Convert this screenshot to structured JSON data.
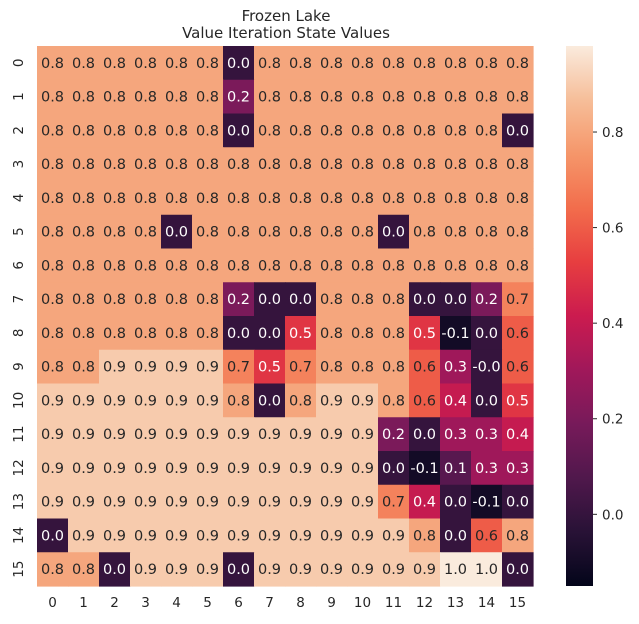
{
  "chart_data": {
    "type": "heatmap",
    "title": "Frozen Lake",
    "subtitle": "Value Iteration State Values",
    "x_tick_labels": [
      "0",
      "1",
      "2",
      "3",
      "4",
      "5",
      "6",
      "7",
      "8",
      "9",
      "10",
      "11",
      "12",
      "13",
      "14",
      "15"
    ],
    "y_tick_labels": [
      "0",
      "1",
      "2",
      "3",
      "4",
      "5",
      "6",
      "7",
      "8",
      "9",
      "10",
      "11",
      "12",
      "13",
      "14",
      "15"
    ],
    "values": [
      [
        0.8,
        0.8,
        0.8,
        0.8,
        0.8,
        0.8,
        0.0,
        0.8,
        0.8,
        0.8,
        0.8,
        0.8,
        0.8,
        0.8,
        0.8,
        0.8
      ],
      [
        0.8,
        0.8,
        0.8,
        0.8,
        0.8,
        0.8,
        0.2,
        0.8,
        0.8,
        0.8,
        0.8,
        0.8,
        0.8,
        0.8,
        0.8,
        0.8
      ],
      [
        0.8,
        0.8,
        0.8,
        0.8,
        0.8,
        0.8,
        0.0,
        0.8,
        0.8,
        0.8,
        0.8,
        0.8,
        0.8,
        0.8,
        0.8,
        0.0
      ],
      [
        0.8,
        0.8,
        0.8,
        0.8,
        0.8,
        0.8,
        0.8,
        0.8,
        0.8,
        0.8,
        0.8,
        0.8,
        0.8,
        0.8,
        0.8,
        0.8
      ],
      [
        0.8,
        0.8,
        0.8,
        0.8,
        0.8,
        0.8,
        0.8,
        0.8,
        0.8,
        0.8,
        0.8,
        0.8,
        0.8,
        0.8,
        0.8,
        0.8
      ],
      [
        0.8,
        0.8,
        0.8,
        0.8,
        0.0,
        0.8,
        0.8,
        0.8,
        0.8,
        0.8,
        0.8,
        0.0,
        0.8,
        0.8,
        0.8,
        0.8
      ],
      [
        0.8,
        0.8,
        0.8,
        0.8,
        0.8,
        0.8,
        0.8,
        0.8,
        0.8,
        0.8,
        0.8,
        0.8,
        0.8,
        0.8,
        0.8,
        0.8
      ],
      [
        0.8,
        0.8,
        0.8,
        0.8,
        0.8,
        0.8,
        0.2,
        0.0,
        0.0,
        0.8,
        0.8,
        0.8,
        0.0,
        0.0,
        0.2,
        0.7
      ],
      [
        0.8,
        0.8,
        0.8,
        0.8,
        0.8,
        0.8,
        0.0,
        0.0,
        0.5,
        0.8,
        0.8,
        0.8,
        0.5,
        -0.1,
        0.0,
        0.6
      ],
      [
        0.8,
        0.8,
        0.9,
        0.9,
        0.9,
        0.9,
        0.7,
        0.5,
        0.7,
        0.8,
        0.8,
        0.8,
        0.6,
        0.3,
        -0.0,
        0.6
      ],
      [
        0.9,
        0.9,
        0.9,
        0.9,
        0.9,
        0.9,
        0.8,
        0.0,
        0.8,
        0.9,
        0.9,
        0.8,
        0.6,
        0.4,
        0.0,
        0.5
      ],
      [
        0.9,
        0.9,
        0.9,
        0.9,
        0.9,
        0.9,
        0.9,
        0.9,
        0.9,
        0.9,
        0.9,
        0.2,
        0.0,
        0.3,
        0.3,
        0.4
      ],
      [
        0.9,
        0.9,
        0.9,
        0.9,
        0.9,
        0.9,
        0.9,
        0.9,
        0.9,
        0.9,
        0.9,
        0.0,
        -0.1,
        0.1,
        0.3,
        0.3
      ],
      [
        0.9,
        0.9,
        0.9,
        0.9,
        0.9,
        0.9,
        0.9,
        0.9,
        0.9,
        0.9,
        0.9,
        0.7,
        0.4,
        0.0,
        -0.1,
        0.0
      ],
      [
        0.0,
        0.9,
        0.9,
        0.9,
        0.9,
        0.9,
        0.9,
        0.9,
        0.9,
        0.9,
        0.9,
        0.9,
        0.8,
        0.0,
        0.6,
        0.8
      ],
      [
        0.8,
        0.8,
        0.0,
        0.9,
        0.9,
        0.9,
        0.0,
        0.9,
        0.9,
        0.9,
        0.9,
        0.9,
        0.9,
        1.0,
        1.0,
        0.0
      ]
    ],
    "cell_labels": [
      [
        "0.8",
        "0.8",
        "0.8",
        "0.8",
        "0.8",
        "0.8",
        "0.0",
        "0.8",
        "0.8",
        "0.8",
        "0.8",
        "0.8",
        "0.8",
        "0.8",
        "0.8",
        "0.8"
      ],
      [
        "0.8",
        "0.8",
        "0.8",
        "0.8",
        "0.8",
        "0.8",
        "0.2",
        "0.8",
        "0.8",
        "0.8",
        "0.8",
        "0.8",
        "0.8",
        "0.8",
        "0.8",
        "0.8"
      ],
      [
        "0.8",
        "0.8",
        "0.8",
        "0.8",
        "0.8",
        "0.8",
        "0.0",
        "0.8",
        "0.8",
        "0.8",
        "0.8",
        "0.8",
        "0.8",
        "0.8",
        "0.8",
        "0.0"
      ],
      [
        "0.8",
        "0.8",
        "0.8",
        "0.8",
        "0.8",
        "0.8",
        "0.8",
        "0.8",
        "0.8",
        "0.8",
        "0.8",
        "0.8",
        "0.8",
        "0.8",
        "0.8",
        "0.8"
      ],
      [
        "0.8",
        "0.8",
        "0.8",
        "0.8",
        "0.8",
        "0.8",
        "0.8",
        "0.8",
        "0.8",
        "0.8",
        "0.8",
        "0.8",
        "0.8",
        "0.8",
        "0.8",
        "0.8"
      ],
      [
        "0.8",
        "0.8",
        "0.8",
        "0.8",
        "0.0",
        "0.8",
        "0.8",
        "0.8",
        "0.8",
        "0.8",
        "0.8",
        "0.0",
        "0.8",
        "0.8",
        "0.8",
        "0.8"
      ],
      [
        "0.8",
        "0.8",
        "0.8",
        "0.8",
        "0.8",
        "0.8",
        "0.8",
        "0.8",
        "0.8",
        "0.8",
        "0.8",
        "0.8",
        "0.8",
        "0.8",
        "0.8",
        "0.8"
      ],
      [
        "0.8",
        "0.8",
        "0.8",
        "0.8",
        "0.8",
        "0.8",
        "0.2",
        "0.0",
        "0.0",
        "0.8",
        "0.8",
        "0.8",
        "0.0",
        "0.0",
        "0.2",
        "0.7"
      ],
      [
        "0.8",
        "0.8",
        "0.8",
        "0.8",
        "0.8",
        "0.8",
        "0.0",
        "0.0",
        "0.5",
        "0.8",
        "0.8",
        "0.8",
        "0.5",
        "-0.1",
        "0.0",
        "0.6"
      ],
      [
        "0.8",
        "0.8",
        "0.9",
        "0.9",
        "0.9",
        "0.9",
        "0.7",
        "0.5",
        "0.7",
        "0.8",
        "0.8",
        "0.8",
        "0.6",
        "0.3",
        "-0.0",
        "0.6"
      ],
      [
        "0.9",
        "0.9",
        "0.9",
        "0.9",
        "0.9",
        "0.9",
        "0.8",
        "0.0",
        "0.8",
        "0.9",
        "0.9",
        "0.8",
        "0.6",
        "0.4",
        "0.0",
        "0.5"
      ],
      [
        "0.9",
        "0.9",
        "0.9",
        "0.9",
        "0.9",
        "0.9",
        "0.9",
        "0.9",
        "0.9",
        "0.9",
        "0.9",
        "0.2",
        "0.0",
        "0.3",
        "0.3",
        "0.4"
      ],
      [
        "0.9",
        "0.9",
        "0.9",
        "0.9",
        "0.9",
        "0.9",
        "0.9",
        "0.9",
        "0.9",
        "0.9",
        "0.9",
        "0.0",
        "-0.1",
        "0.1",
        "0.3",
        "0.3"
      ],
      [
        "0.9",
        "0.9",
        "0.9",
        "0.9",
        "0.9",
        "0.9",
        "0.9",
        "0.9",
        "0.9",
        "0.9",
        "0.9",
        "0.7",
        "0.4",
        "0.0",
        "-0.1",
        "0.0"
      ],
      [
        "0.0",
        "0.9",
        "0.9",
        "0.9",
        "0.9",
        "0.9",
        "0.9",
        "0.9",
        "0.9",
        "0.9",
        "0.9",
        "0.9",
        "0.8",
        "0.0",
        "0.6",
        "0.8"
      ],
      [
        "0.8",
        "0.8",
        "0.0",
        "0.9",
        "0.9",
        "0.9",
        "0.0",
        "0.9",
        "0.9",
        "0.9",
        "0.9",
        "0.9",
        "0.9",
        "1.0",
        "1.0",
        "0.0"
      ]
    ],
    "colormap": "rocket",
    "vmin": -0.15,
    "vmax": 0.98,
    "colorbar_ticks": [
      0.0,
      0.2,
      0.4,
      0.6,
      0.8
    ],
    "colorbar_tick_labels": [
      "0.0",
      "0.2",
      "0.4",
      "0.6",
      "0.8"
    ],
    "grid": false,
    "colorbar_position": "right"
  }
}
